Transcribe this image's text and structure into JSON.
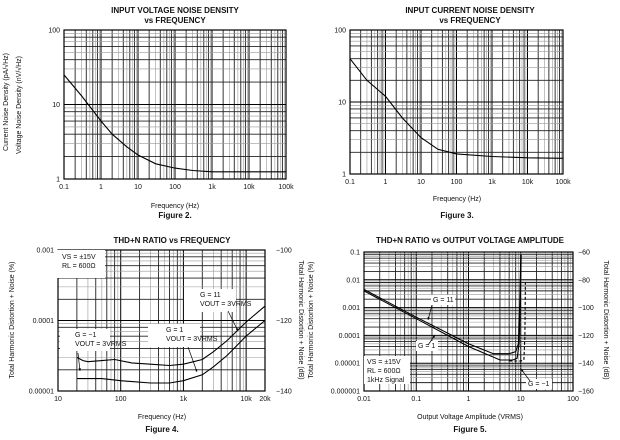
{
  "chart_data": [
    {
      "type": "line",
      "title": [
        "INPUT VOLTAGE NOISE DENSITY",
        "vs FREQUENCY"
      ],
      "caption": "Figure 2.",
      "xlabel": "Frequency (Hz)",
      "ylabel": "Voltage Noise Density (nV/√Hz)",
      "xscale": "log",
      "yscale": "log",
      "xlim": [
        0.1,
        100000
      ],
      "ylim": [
        1,
        100
      ],
      "xticks": [
        {
          "v": 0.1,
          "t": "0.1"
        },
        {
          "v": 1,
          "t": "1"
        },
        {
          "v": 10,
          "t": "10"
        },
        {
          "v": 100,
          "t": "100"
        },
        {
          "v": 1000,
          "t": "1k"
        },
        {
          "v": 10000,
          "t": "10k"
        },
        {
          "v": 100000,
          "t": "100k"
        }
      ],
      "yticks": [
        {
          "v": 1,
          "t": "1"
        },
        {
          "v": 10,
          "t": "10"
        },
        {
          "v": 100,
          "t": "100"
        }
      ],
      "grid": true,
      "series": [
        {
          "name": "Voltage noise",
          "style": "solid",
          "x": [
            0.1,
            0.3,
            1,
            2,
            5,
            10,
            30,
            100,
            300,
            1000,
            10000,
            100000
          ],
          "y": [
            25,
            13,
            6,
            4,
            2.7,
            2.1,
            1.6,
            1.4,
            1.3,
            1.25,
            1.25,
            1.25
          ]
        }
      ],
      "annotations": []
    },
    {
      "type": "line",
      "title": [
        "INPUT CURRENT NOISE DENSITY",
        "vs FREQUENCY"
      ],
      "caption": "Figure 3.",
      "xlabel": "Frequency (Hz)",
      "ylabel": "Current Noise Density (pA/√Hz)",
      "xscale": "log",
      "yscale": "log",
      "xlim": [
        0.1,
        100000
      ],
      "ylim": [
        1,
        100
      ],
      "xticks": [
        {
          "v": 0.1,
          "t": "0.1"
        },
        {
          "v": 1,
          "t": "1"
        },
        {
          "v": 10,
          "t": "10"
        },
        {
          "v": 100,
          "t": "100"
        },
        {
          "v": 1000,
          "t": "1k"
        },
        {
          "v": 10000,
          "t": "10k"
        },
        {
          "v": 100000,
          "t": "100k"
        }
      ],
      "yticks": [
        {
          "v": 1,
          "t": "1"
        },
        {
          "v": 10,
          "t": "10"
        },
        {
          "v": 100,
          "t": "100"
        }
      ],
      "grid": true,
      "series": [
        {
          "name": "Current noise",
          "style": "solid",
          "x": [
            0.1,
            0.3,
            1,
            3,
            10,
            30,
            100,
            1000,
            10000,
            100000
          ],
          "y": [
            40,
            20,
            12,
            6,
            3.2,
            2.2,
            1.9,
            1.75,
            1.68,
            1.65
          ]
        }
      ],
      "annotations": []
    },
    {
      "type": "line",
      "title": [
        "THD+N RATIO vs FREQUENCY"
      ],
      "caption": "Figure 4.",
      "xlabel": "Frequency (Hz)",
      "ylabel": "Total Harmonic Distortion + Noise (%)",
      "ylabel_right": "Total Harmonic Distortion + Noise (dB)",
      "xscale": "log",
      "yscale": "log",
      "xlim": [
        10,
        20000
      ],
      "ylim": [
        1e-05,
        0.001
      ],
      "xticks": [
        {
          "v": 10,
          "t": "10"
        },
        {
          "v": 100,
          "t": "100"
        },
        {
          "v": 1000,
          "t": "1k"
        },
        {
          "v": 10000,
          "t": "10k"
        },
        {
          "v": 20000,
          "t": "20k"
        }
      ],
      "yticks": [
        {
          "v": 1e-05,
          "t": "0.00001"
        },
        {
          "v": 0.0001,
          "t": "0.0001"
        },
        {
          "v": 0.001,
          "t": "0.001"
        }
      ],
      "yticks_right": [
        {
          "v": 1e-05,
          "t": "−140"
        },
        {
          "v": 0.0001,
          "t": "−120"
        },
        {
          "v": 0.001,
          "t": "−100"
        }
      ],
      "grid": true,
      "series": [
        {
          "name": "G = 11",
          "style": "solid",
          "x": [
            20,
            25,
            30,
            50,
            80,
            150,
            300,
            600,
            1000,
            2000,
            3000,
            5000,
            10000,
            20000
          ],
          "y": [
            3e-05,
            2.7e-05,
            2.6e-05,
            2.7e-05,
            2.8e-05,
            2.5e-05,
            2.4e-05,
            2.3e-05,
            2.4e-05,
            2.8e-05,
            3.6e-05,
            5.2e-05,
            9.5e-05,
            0.00016
          ]
        },
        {
          "name": "G = 1",
          "style": "solid",
          "x": [
            20,
            50,
            100,
            300,
            600,
            1000,
            2000,
            3000,
            5000,
            10000,
            20000
          ],
          "y": [
            1.5e-05,
            1.5e-05,
            1.4e-05,
            1.3e-05,
            1.3e-05,
            1.4e-05,
            1.7e-05,
            2.2e-05,
            3.2e-05,
            6e-05,
            0.0001
          ]
        }
      ],
      "annotations": [
        {
          "lines": [
            "VS = ±15V",
            "RL = 600Ω"
          ],
          "boxed": true
        },
        {
          "lines": [
            "G = 11",
            "VOUT = 3VRMS"
          ]
        },
        {
          "lines": [
            "G = 1",
            "VOUT = 3VRMS"
          ]
        },
        {
          "lines": [
            "G = −1",
            "VOUT = 3VRMS"
          ]
        }
      ]
    },
    {
      "type": "line",
      "title": [
        "THD+N RATIO vs OUTPUT VOLTAGE AMPLITUDE"
      ],
      "caption": "Figure 5.",
      "xlabel": "Output Voltage Amplitude (VRMS)",
      "ylabel": "Total Harmonic Distortion + Noise (%)",
      "ylabel_right": "Total Harmonic Distortion + Noise (dB)",
      "xscale": "log",
      "yscale": "log",
      "xlim": [
        0.01,
        100
      ],
      "ylim": [
        1e-06,
        0.1
      ],
      "xticks": [
        {
          "v": 0.01,
          "t": "0.01"
        },
        {
          "v": 0.1,
          "t": "0.1"
        },
        {
          "v": 1,
          "t": "1"
        },
        {
          "v": 10,
          "t": "10"
        },
        {
          "v": 100,
          "t": "100"
        }
      ],
      "yticks": [
        {
          "v": 1e-06,
          "t": "0.000001"
        },
        {
          "v": 1e-05,
          "t": "0.00001"
        },
        {
          "v": 0.0001,
          "t": "0.0001"
        },
        {
          "v": 0.001,
          "t": "0.001"
        },
        {
          "v": 0.01,
          "t": "0.01"
        },
        {
          "v": 0.1,
          "t": "0.1"
        }
      ],
      "yticks_right": [
        {
          "v": 1e-06,
          "t": "−160"
        },
        {
          "v": 1e-05,
          "t": "−140"
        },
        {
          "v": 0.0001,
          "t": "−120"
        },
        {
          "v": 0.001,
          "t": "−100"
        },
        {
          "v": 0.01,
          "t": "−80"
        },
        {
          "v": 0.1,
          "t": "−60"
        }
      ],
      "grid": true,
      "series": [
        {
          "name": "G = 11",
          "style": "solid",
          "x": [
            0.01,
            0.1,
            1,
            3,
            6,
            8,
            9,
            9.5,
            10
          ],
          "y": [
            0.0045,
            0.00045,
            5e-05,
            2.2e-05,
            2.2e-05,
            2.6e-05,
            5e-05,
            0.001,
            0.08
          ]
        },
        {
          "name": "G = 1",
          "style": "solid",
          "x": [
            0.01,
            0.1,
            1,
            4,
            7,
            8.5,
            9.3,
            9.8,
            10.2
          ],
          "y": [
            0.004,
            0.0004,
            4e-05,
            1.3e-05,
            1.3e-05,
            1.5e-05,
            5e-05,
            0.002,
            0.08
          ]
        },
        {
          "name": "G = −1",
          "style": "dashed",
          "x": [
            6,
            10,
            11.5,
            12,
            12.3
          ],
          "y": [
            1.2e-05,
            1.2e-05,
            1.3e-05,
            0.0001,
            0.008
          ]
        }
      ],
      "annotations": [
        {
          "lines": [
            "VS = ±15V",
            "RL = 600Ω",
            "1kHz Signal"
          ],
          "boxed": true
        },
        {
          "lines": [
            "G = 11"
          ]
        },
        {
          "lines": [
            "G = 1"
          ]
        },
        {
          "lines": [
            "G = −1"
          ]
        }
      ]
    }
  ]
}
